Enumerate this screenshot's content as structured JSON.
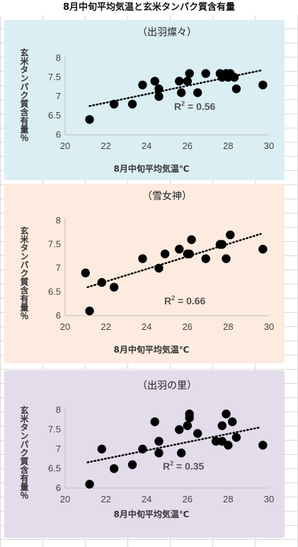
{
  "page": {
    "title": "8月中旬平均気温と玄米タンパク質含有量"
  },
  "colors": {
    "panel1": "#dbeef4",
    "panel2": "#fdebdf",
    "panel3": "#e3dceb",
    "marker": "#000000"
  },
  "chart_data": [
    {
      "type": "scatter",
      "title": "（出羽燦々）",
      "xlabel": "8月中旬平均気温℃",
      "ylabel": "玄米タンパク質含有量％",
      "xlim": [
        20,
        30
      ],
      "ylim": [
        6,
        8
      ],
      "xticks": [
        20,
        22,
        24,
        26,
        28,
        30
      ],
      "yticks": [
        6,
        6.5,
        7,
        7.5,
        8
      ],
      "r2_label": "R",
      "r2_sup": "2",
      "r2_value": " = 0.56",
      "trend": [
        [
          21.2,
          6.75
        ],
        [
          29.6,
          7.68
        ]
      ],
      "x": [
        21.2,
        22.4,
        23.3,
        23.8,
        24.4,
        24.6,
        24.6,
        25.6,
        25.7,
        26.0,
        26.1,
        26.5,
        26.9,
        27.6,
        27.7,
        27.9,
        28.0,
        28.1,
        28.3,
        28.4,
        29.7
      ],
      "y": [
        6.4,
        6.8,
        6.8,
        7.3,
        7.4,
        7.2,
        7.0,
        7.4,
        7.1,
        7.4,
        7.6,
        7.1,
        7.6,
        7.6,
        7.5,
        7.6,
        7.5,
        7.6,
        7.5,
        7.2,
        7.3
      ]
    },
    {
      "type": "scatter",
      "title": "（雪女神）",
      "xlabel": "8月中旬平均気温℃",
      "ylabel": "玄米タンパク質含有量％",
      "xlim": [
        20,
        30
      ],
      "ylim": [
        6,
        8
      ],
      "xticks": [
        20,
        22,
        24,
        26,
        28,
        30
      ],
      "yticks": [
        6,
        6.5,
        7,
        7.5,
        8
      ],
      "r2_label": "R",
      "r2_sup": "2",
      "r2_value": " = 0.66",
      "trend": [
        [
          21.1,
          6.6
        ],
        [
          29.6,
          7.72
        ]
      ],
      "x": [
        21.0,
        21.2,
        21.8,
        22.4,
        23.8,
        24.6,
        24.9,
        25.6,
        26.0,
        26.1,
        26.2,
        26.9,
        27.6,
        27.7,
        27.9,
        28.1,
        29.7
      ],
      "y": [
        6.9,
        6.1,
        6.7,
        6.6,
        7.2,
        7.0,
        7.3,
        7.4,
        7.3,
        7.3,
        7.6,
        7.2,
        7.5,
        7.5,
        7.2,
        7.7,
        7.4
      ]
    },
    {
      "type": "scatter",
      "title": "（出羽の里）",
      "xlabel": "8月中旬平均気温℃",
      "ylabel": "玄米タンパク質含有量％",
      "xlim": [
        20,
        30
      ],
      "ylim": [
        6,
        8
      ],
      "xticks": [
        20,
        22,
        24,
        26,
        28,
        30
      ],
      "yticks": [
        6,
        6.5,
        7,
        7.5,
        8
      ],
      "r2_label": "R",
      "r2_sup": "2",
      "r2_value": " = 0.35",
      "trend": [
        [
          21.1,
          6.66
        ],
        [
          29.6,
          7.56
        ]
      ],
      "x": [
        21.2,
        21.8,
        22.4,
        23.3,
        23.8,
        24.4,
        24.6,
        24.6,
        25.6,
        25.7,
        26.0,
        26.1,
        26.1,
        26.5,
        27.4,
        27.7,
        27.7,
        27.9,
        28.0,
        28.2,
        28.4,
        29.7
      ],
      "y": [
        6.1,
        7.0,
        6.5,
        6.6,
        7.0,
        7.7,
        7.2,
        6.9,
        7.5,
        6.9,
        7.6,
        7.9,
        7.8,
        7.4,
        7.2,
        7.6,
        7.2,
        7.9,
        7.1,
        7.7,
        7.3,
        7.1
      ]
    }
  ]
}
